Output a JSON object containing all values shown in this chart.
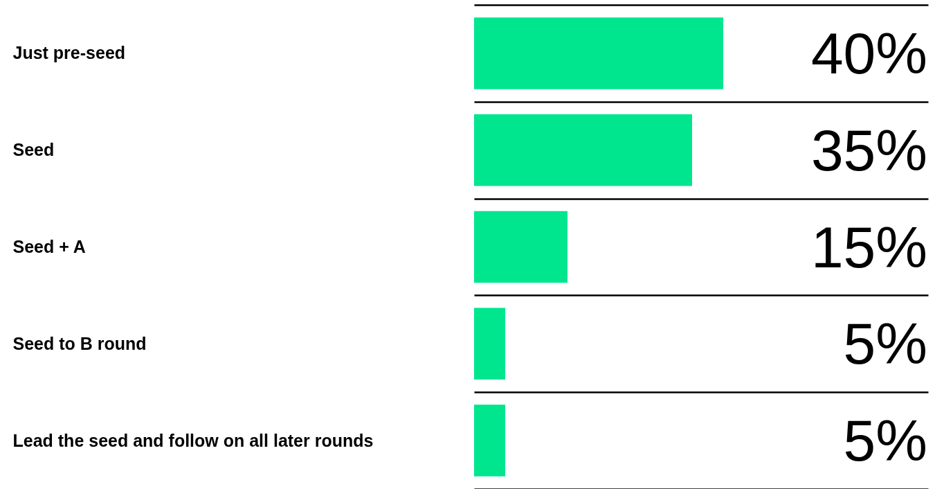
{
  "chart_data": {
    "type": "bar",
    "orientation": "horizontal",
    "categories": [
      "Just pre-seed",
      "Seed",
      "Seed + A",
      "Seed to B round",
      "Lead the seed and follow on all later rounds"
    ],
    "values": [
      40,
      35,
      15,
      5,
      5
    ],
    "value_labels": [
      "40%",
      "35%",
      "15%",
      "5%",
      "5%"
    ],
    "color": "#00e68f",
    "grid": "y",
    "tick_labels": "y"
  }
}
